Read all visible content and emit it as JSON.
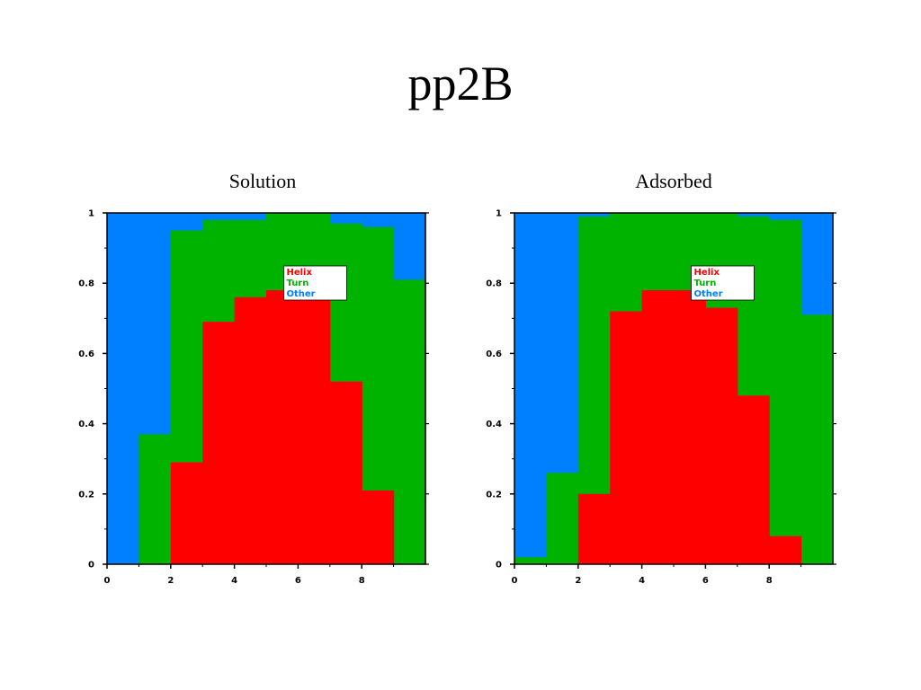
{
  "slide": {
    "title": "pp2B"
  },
  "colors": {
    "Helix": "#ff0000",
    "Turn": "#00b300",
    "Other": "#0080ff"
  },
  "chart_data": [
    {
      "type": "area",
      "stacked": true,
      "step": true,
      "title": "Solution",
      "xlabel": "",
      "ylabel": "",
      "xlim": [
        0,
        10
      ],
      "ylim": [
        0,
        1
      ],
      "x_ticks": [
        0,
        2,
        4,
        6,
        8
      ],
      "y_ticks": [
        0,
        0.2,
        0.4,
        0.6,
        0.8,
        1
      ],
      "y_tick_labels": [
        "0",
        "0.2",
        "0.4",
        "0.6",
        "0.8",
        "1"
      ],
      "legend_position": "center-top",
      "x": [
        0,
        1,
        2,
        3,
        4,
        5,
        6,
        7,
        8,
        9
      ],
      "series": [
        {
          "name": "Helix",
          "values": [
            0,
            0,
            0.29,
            0.69,
            0.76,
            0.78,
            0.78,
            0.52,
            0.21,
            0
          ]
        },
        {
          "name": "Turn",
          "values": [
            0,
            0.37,
            0.95,
            0.98,
            0.98,
            1.0,
            1.0,
            0.97,
            0.96,
            0.81
          ]
        },
        {
          "name": "Other",
          "values": [
            1,
            1,
            1,
            1,
            1,
            1,
            1,
            1,
            1,
            1
          ]
        }
      ]
    },
    {
      "type": "area",
      "stacked": true,
      "step": true,
      "title": "Adsorbed",
      "xlabel": "",
      "ylabel": "",
      "xlim": [
        0,
        10
      ],
      "ylim": [
        0,
        1
      ],
      "x_ticks": [
        0,
        2,
        4,
        6,
        8
      ],
      "y_ticks": [
        0,
        0.2,
        0.4,
        0.6,
        0.8,
        1
      ],
      "y_tick_labels": [
        "0",
        "0.2",
        "0.4",
        "0.6",
        "0.8",
        "1"
      ],
      "legend_position": "center-top",
      "x": [
        0,
        1,
        2,
        3,
        4,
        5,
        6,
        7,
        8,
        9
      ],
      "series": [
        {
          "name": "Helix",
          "values": [
            0,
            0,
            0.2,
            0.72,
            0.78,
            0.78,
            0.73,
            0.48,
            0.08,
            0
          ]
        },
        {
          "name": "Turn",
          "values": [
            0.02,
            0.26,
            0.99,
            1.0,
            1.0,
            1.0,
            1.0,
            0.99,
            0.98,
            0.71
          ]
        },
        {
          "name": "Other",
          "values": [
            1,
            1,
            1,
            1,
            1,
            1,
            1,
            1,
            1,
            1
          ]
        }
      ]
    }
  ]
}
